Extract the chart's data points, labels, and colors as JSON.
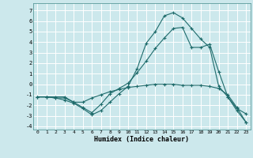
{
  "xlabel": "Humidex (Indice chaleur)",
  "background_color": "#cce8ec",
  "grid_color": "#ffffff",
  "line_color": "#1e6b6b",
  "xlim": [
    -0.5,
    23.5
  ],
  "ylim": [
    -4.3,
    7.7
  ],
  "xticks": [
    0,
    1,
    2,
    3,
    4,
    5,
    6,
    7,
    8,
    9,
    10,
    11,
    12,
    13,
    14,
    15,
    16,
    17,
    18,
    19,
    20,
    21,
    22,
    23
  ],
  "yticks": [
    -4,
    -3,
    -2,
    -1,
    0,
    1,
    2,
    3,
    4,
    5,
    6,
    7
  ],
  "line1_x": [
    0,
    1,
    2,
    3,
    4,
    5,
    6,
    7,
    8,
    9,
    10,
    11,
    12,
    13,
    14,
    15,
    16,
    17,
    18,
    19,
    20,
    21,
    22,
    23
  ],
  "line1_y": [
    -1.2,
    -1.2,
    -1.2,
    -1.2,
    -1.7,
    -1.7,
    -1.3,
    -1.0,
    -0.7,
    -0.5,
    -0.3,
    -0.2,
    -0.1,
    0.0,
    0.0,
    0.0,
    -0.1,
    -0.1,
    -0.1,
    -0.2,
    -0.4,
    -1.0,
    -2.2,
    -3.6
  ],
  "line2_x": [
    0,
    1,
    2,
    3,
    4,
    5,
    6,
    7,
    8,
    9,
    10,
    11,
    12,
    13,
    14,
    15,
    16,
    17,
    18,
    19,
    20,
    21,
    22,
    23
  ],
  "line2_y": [
    -1.2,
    -1.2,
    -1.3,
    -1.3,
    -1.7,
    -2.2,
    -2.7,
    -1.9,
    -0.9,
    -0.4,
    0.1,
    1.1,
    2.2,
    3.4,
    4.4,
    5.3,
    5.4,
    3.5,
    3.5,
    3.8,
    1.2,
    -1.2,
    -2.3,
    -2.8
  ],
  "line3_x": [
    0,
    1,
    2,
    3,
    4,
    5,
    6,
    7,
    8,
    9,
    10,
    11,
    12,
    13,
    14,
    15,
    16,
    17,
    18,
    19,
    20,
    21,
    22,
    23
  ],
  "line3_y": [
    -1.2,
    -1.2,
    -1.3,
    -1.5,
    -1.8,
    -2.3,
    -2.9,
    -2.5,
    -1.7,
    -0.9,
    -0.2,
    1.5,
    3.9,
    5.0,
    6.5,
    6.8,
    6.3,
    5.3,
    4.3,
    3.5,
    -0.2,
    -1.2,
    -2.5,
    -3.6
  ]
}
